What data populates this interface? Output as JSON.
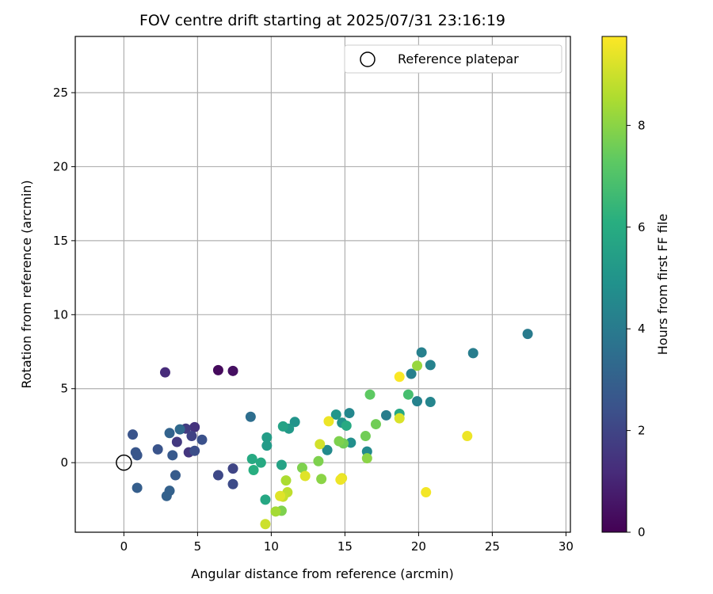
{
  "chart_data": {
    "type": "scatter",
    "title": "FOV centre drift starting at 2025/07/31 23:16:19",
    "xlabel": "Angular distance from reference (arcmin)",
    "ylabel": "Rotation from reference (arcmin)",
    "xlim": [
      -3.3,
      30.3
    ],
    "ylim": [
      -4.7,
      28.8
    ],
    "xticks": [
      0,
      5,
      10,
      15,
      20,
      25,
      30
    ],
    "yticks": [
      0,
      5,
      10,
      15,
      20,
      25
    ],
    "grid": true,
    "legend": {
      "label": "Reference platepar",
      "placement": "top-right"
    },
    "reference_point": {
      "x": 0,
      "y": 0
    },
    "colorbar": {
      "label": "Hours from first FF file",
      "colormap": "viridis",
      "range": [
        0,
        9.75
      ],
      "ticks": [
        0,
        2,
        4,
        6,
        8
      ]
    },
    "points": [
      {
        "x": 6.4,
        "y": 6.25,
        "c": 0.25
      },
      {
        "x": 7.4,
        "y": 6.2,
        "c": 0.4
      },
      {
        "x": 2.8,
        "y": 6.1,
        "c": 1.2
      },
      {
        "x": 4.8,
        "y": 2.4,
        "c": 1.4
      },
      {
        "x": 4.4,
        "y": 0.7,
        "c": 1.5
      },
      {
        "x": 3.6,
        "y": 1.4,
        "c": 1.6
      },
      {
        "x": 4.2,
        "y": 2.3,
        "c": 1.7
      },
      {
        "x": 4.6,
        "y": 1.8,
        "c": 1.9
      },
      {
        "x": 7.4,
        "y": -0.4,
        "c": 2.0
      },
      {
        "x": 6.4,
        "y": -0.85,
        "c": 2.1
      },
      {
        "x": 7.4,
        "y": -1.45,
        "c": 2.2
      },
      {
        "x": 4.8,
        "y": 0.8,
        "c": 2.3
      },
      {
        "x": 5.3,
        "y": 1.55,
        "c": 2.4
      },
      {
        "x": 0.6,
        "y": 1.9,
        "c": 2.5
      },
      {
        "x": 0.8,
        "y": 0.7,
        "c": 2.6
      },
      {
        "x": 0.9,
        "y": 0.5,
        "c": 2.6
      },
      {
        "x": 2.3,
        "y": 0.9,
        "c": 2.5
      },
      {
        "x": 3.3,
        "y": 0.5,
        "c": 2.7
      },
      {
        "x": 3.5,
        "y": -0.85,
        "c": 2.8
      },
      {
        "x": 0.9,
        "y": -1.7,
        "c": 2.9
      },
      {
        "x": 3.1,
        "y": -1.9,
        "c": 3.0
      },
      {
        "x": 2.9,
        "y": -2.25,
        "c": 3.0
      },
      {
        "x": 3.1,
        "y": 2.0,
        "c": 3.1
      },
      {
        "x": 3.8,
        "y": 2.25,
        "c": 3.3
      },
      {
        "x": 8.6,
        "y": 3.1,
        "c": 3.5
      },
      {
        "x": 27.4,
        "y": 8.7,
        "c": 4.0
      },
      {
        "x": 23.7,
        "y": 7.4,
        "c": 4.1
      },
      {
        "x": 20.2,
        "y": 7.45,
        "c": 4.2
      },
      {
        "x": 20.8,
        "y": 6.6,
        "c": 4.3
      },
      {
        "x": 19.5,
        "y": 6.0,
        "c": 4.2
      },
      {
        "x": 17.8,
        "y": 3.2,
        "c": 4.1
      },
      {
        "x": 19.9,
        "y": 4.15,
        "c": 4.3
      },
      {
        "x": 20.8,
        "y": 4.1,
        "c": 4.4
      },
      {
        "x": 15.3,
        "y": 3.35,
        "c": 4.5
      },
      {
        "x": 16.5,
        "y": 0.75,
        "c": 4.6
      },
      {
        "x": 13.8,
        "y": 0.85,
        "c": 4.6
      },
      {
        "x": 15.4,
        "y": 1.35,
        "c": 4.8
      },
      {
        "x": 14.8,
        "y": 2.7,
        "c": 5.0
      },
      {
        "x": 14.4,
        "y": 3.25,
        "c": 5.1
      },
      {
        "x": 11.6,
        "y": 2.75,
        "c": 5.0
      },
      {
        "x": 11.2,
        "y": 2.3,
        "c": 5.2
      },
      {
        "x": 9.7,
        "y": 1.7,
        "c": 5.4
      },
      {
        "x": 9.7,
        "y": 1.15,
        "c": 5.3
      },
      {
        "x": 10.8,
        "y": 2.45,
        "c": 5.6
      },
      {
        "x": 10.7,
        "y": -0.15,
        "c": 5.6
      },
      {
        "x": 9.6,
        "y": -2.5,
        "c": 5.8
      },
      {
        "x": 18.7,
        "y": 3.3,
        "c": 5.8
      },
      {
        "x": 15.1,
        "y": 2.5,
        "c": 5.9
      },
      {
        "x": 8.7,
        "y": 0.25,
        "c": 5.9
      },
      {
        "x": 9.3,
        "y": 0.0,
        "c": 5.9
      },
      {
        "x": 8.8,
        "y": -0.5,
        "c": 6.1
      },
      {
        "x": 19.3,
        "y": 4.6,
        "c": 6.8
      },
      {
        "x": 16.7,
        "y": 4.6,
        "c": 7.3
      },
      {
        "x": 17.1,
        "y": 2.6,
        "c": 7.6
      },
      {
        "x": 16.4,
        "y": 1.8,
        "c": 7.6
      },
      {
        "x": 14.9,
        "y": 1.3,
        "c": 7.6
      },
      {
        "x": 14.6,
        "y": 1.45,
        "c": 7.8
      },
      {
        "x": 13.2,
        "y": 0.1,
        "c": 7.8
      },
      {
        "x": 12.1,
        "y": -0.35,
        "c": 7.8
      },
      {
        "x": 16.5,
        "y": 0.3,
        "c": 8.0
      },
      {
        "x": 13.4,
        "y": -1.1,
        "c": 8.0
      },
      {
        "x": 10.7,
        "y": -3.25,
        "c": 7.8
      },
      {
        "x": 19.9,
        "y": 6.55,
        "c": 8.2
      },
      {
        "x": 10.3,
        "y": -3.3,
        "c": 8.4
      },
      {
        "x": 11.0,
        "y": -1.2,
        "c": 8.5
      },
      {
        "x": 11.1,
        "y": -2.0,
        "c": 8.8
      },
      {
        "x": 10.8,
        "y": -2.3,
        "c": 8.9
      },
      {
        "x": 9.6,
        "y": -4.15,
        "c": 9.0
      },
      {
        "x": 13.3,
        "y": 1.25,
        "c": 9.1
      },
      {
        "x": 18.7,
        "y": 3.0,
        "c": 9.2
      },
      {
        "x": 12.3,
        "y": -0.9,
        "c": 9.3
      },
      {
        "x": 10.6,
        "y": -2.25,
        "c": 9.3
      },
      {
        "x": 14.8,
        "y": -1.05,
        "c": 9.4
      },
      {
        "x": 14.7,
        "y": -1.15,
        "c": 9.5
      },
      {
        "x": 13.9,
        "y": 2.8,
        "c": 9.5
      },
      {
        "x": 23.3,
        "y": 1.8,
        "c": 9.5
      },
      {
        "x": 20.5,
        "y": -2.0,
        "c": 9.6
      },
      {
        "x": 18.7,
        "y": 5.8,
        "c": 9.7
      }
    ]
  }
}
